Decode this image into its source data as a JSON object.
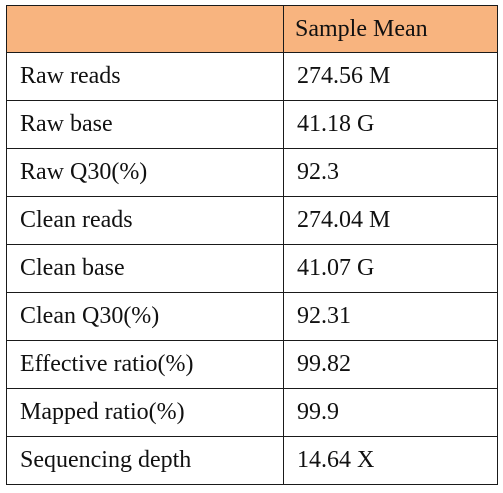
{
  "table": {
    "header": {
      "label": "",
      "value": "Sample Mean"
    },
    "rows": [
      {
        "label": "Raw reads",
        "value": "274.56 M"
      },
      {
        "label": "Raw base",
        "value": "41.18 G"
      },
      {
        "label": "Raw Q30(%)",
        "value": "92.3"
      },
      {
        "label": "Clean reads",
        "value": "274.04 M"
      },
      {
        "label": "Clean base",
        "value": "41.07 G"
      },
      {
        "label": "Clean Q30(%)",
        "value": "92.31"
      },
      {
        "label": "Effective ratio(%)",
        "value": "99.82"
      },
      {
        "label": "Mapped ratio(%)",
        "value": "99.9"
      },
      {
        "label": "Sequencing depth",
        "value": "14.64 X"
      }
    ]
  },
  "colors": {
    "header_background": "#f8b47f",
    "border": "#1a1a1a"
  }
}
